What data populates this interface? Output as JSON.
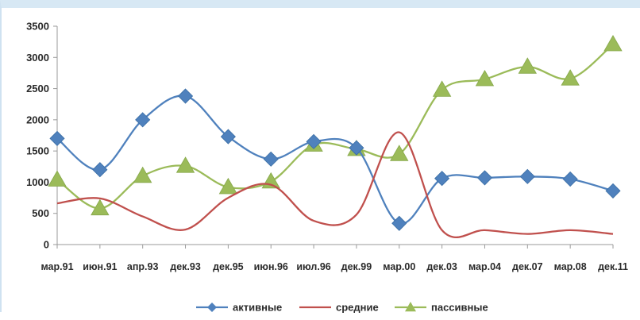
{
  "chart_data": {
    "type": "line",
    "categories": [
      "мар.91",
      "июн.91",
      "апр.93",
      "дек.93",
      "дек.95",
      "июн.96",
      "июл.96",
      "дек.99",
      "мар.00",
      "дек.03",
      "мар.04",
      "дек.07",
      "мар.08",
      "дек.11"
    ],
    "series": [
      {
        "name": "активные",
        "color": "#4f81bd",
        "marker": "diamond",
        "values": [
          1700,
          1200,
          2000,
          2380,
          1730,
          1370,
          1650,
          1550,
          340,
          1060,
          1070,
          1090,
          1050,
          860
        ]
      },
      {
        "name": "средние",
        "color": "#c0504d",
        "marker": "none",
        "values": [
          660,
          740,
          450,
          240,
          750,
          960,
          380,
          480,
          1800,
          230,
          230,
          170,
          230,
          170
        ]
      },
      {
        "name": "пассивные",
        "color": "#9bbb59",
        "marker": "triangle",
        "values": [
          1040,
          580,
          1100,
          1260,
          920,
          1010,
          1600,
          1530,
          1450,
          2480,
          2650,
          2850,
          2660,
          3210
        ]
      }
    ],
    "ylim": [
      0,
      3500
    ],
    "yticks": [
      0,
      500,
      1000,
      1500,
      2000,
      2500,
      3000,
      3500
    ],
    "grid": false,
    "smooth": true,
    "legend_position": "bottom"
  }
}
